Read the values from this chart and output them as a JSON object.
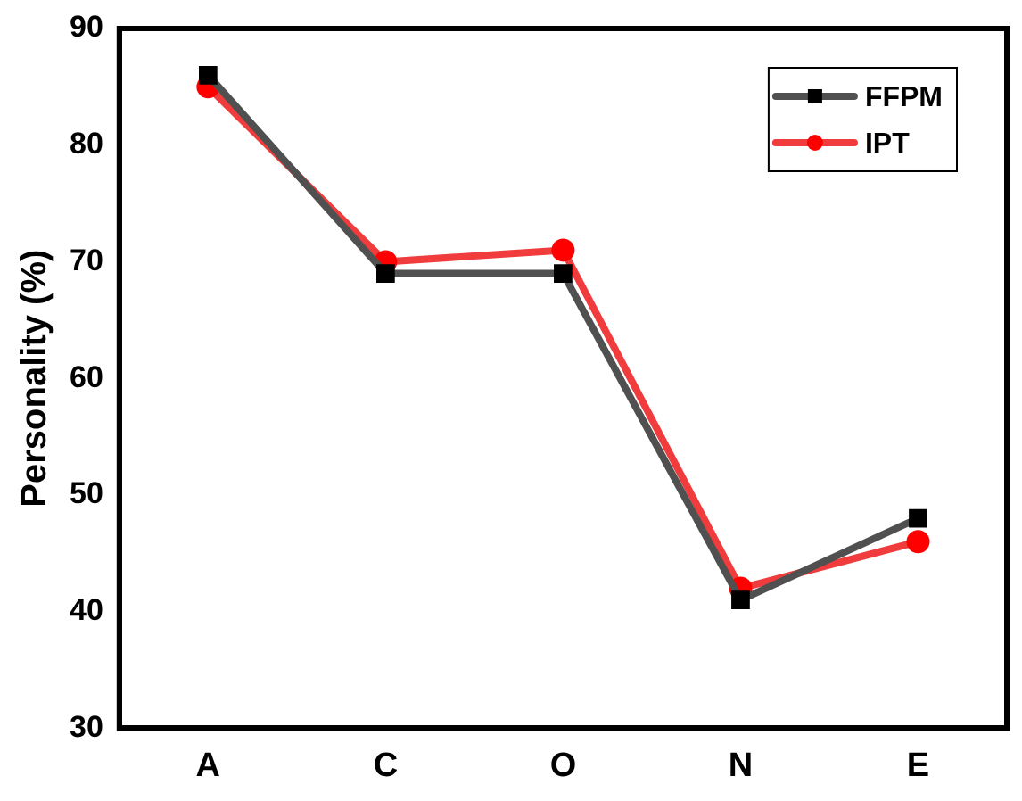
{
  "chart_data": {
    "type": "line",
    "ylabel": "Personality (%)",
    "categories": [
      "A",
      "C",
      "O",
      "N",
      "E"
    ],
    "series": [
      {
        "name": "FFPM",
        "color": "#505050",
        "marker": "square",
        "values": [
          86,
          69,
          69,
          41,
          48
        ]
      },
      {
        "name": "IPT",
        "color": "#f03c3c",
        "marker": "circle",
        "values": [
          85,
          70,
          71,
          42,
          46
        ]
      }
    ],
    "ylim": [
      30,
      90
    ],
    "yticks": [
      30,
      40,
      50,
      60,
      70,
      80,
      90
    ],
    "grid": false,
    "legend": "top right",
    "line_style": "solid"
  }
}
